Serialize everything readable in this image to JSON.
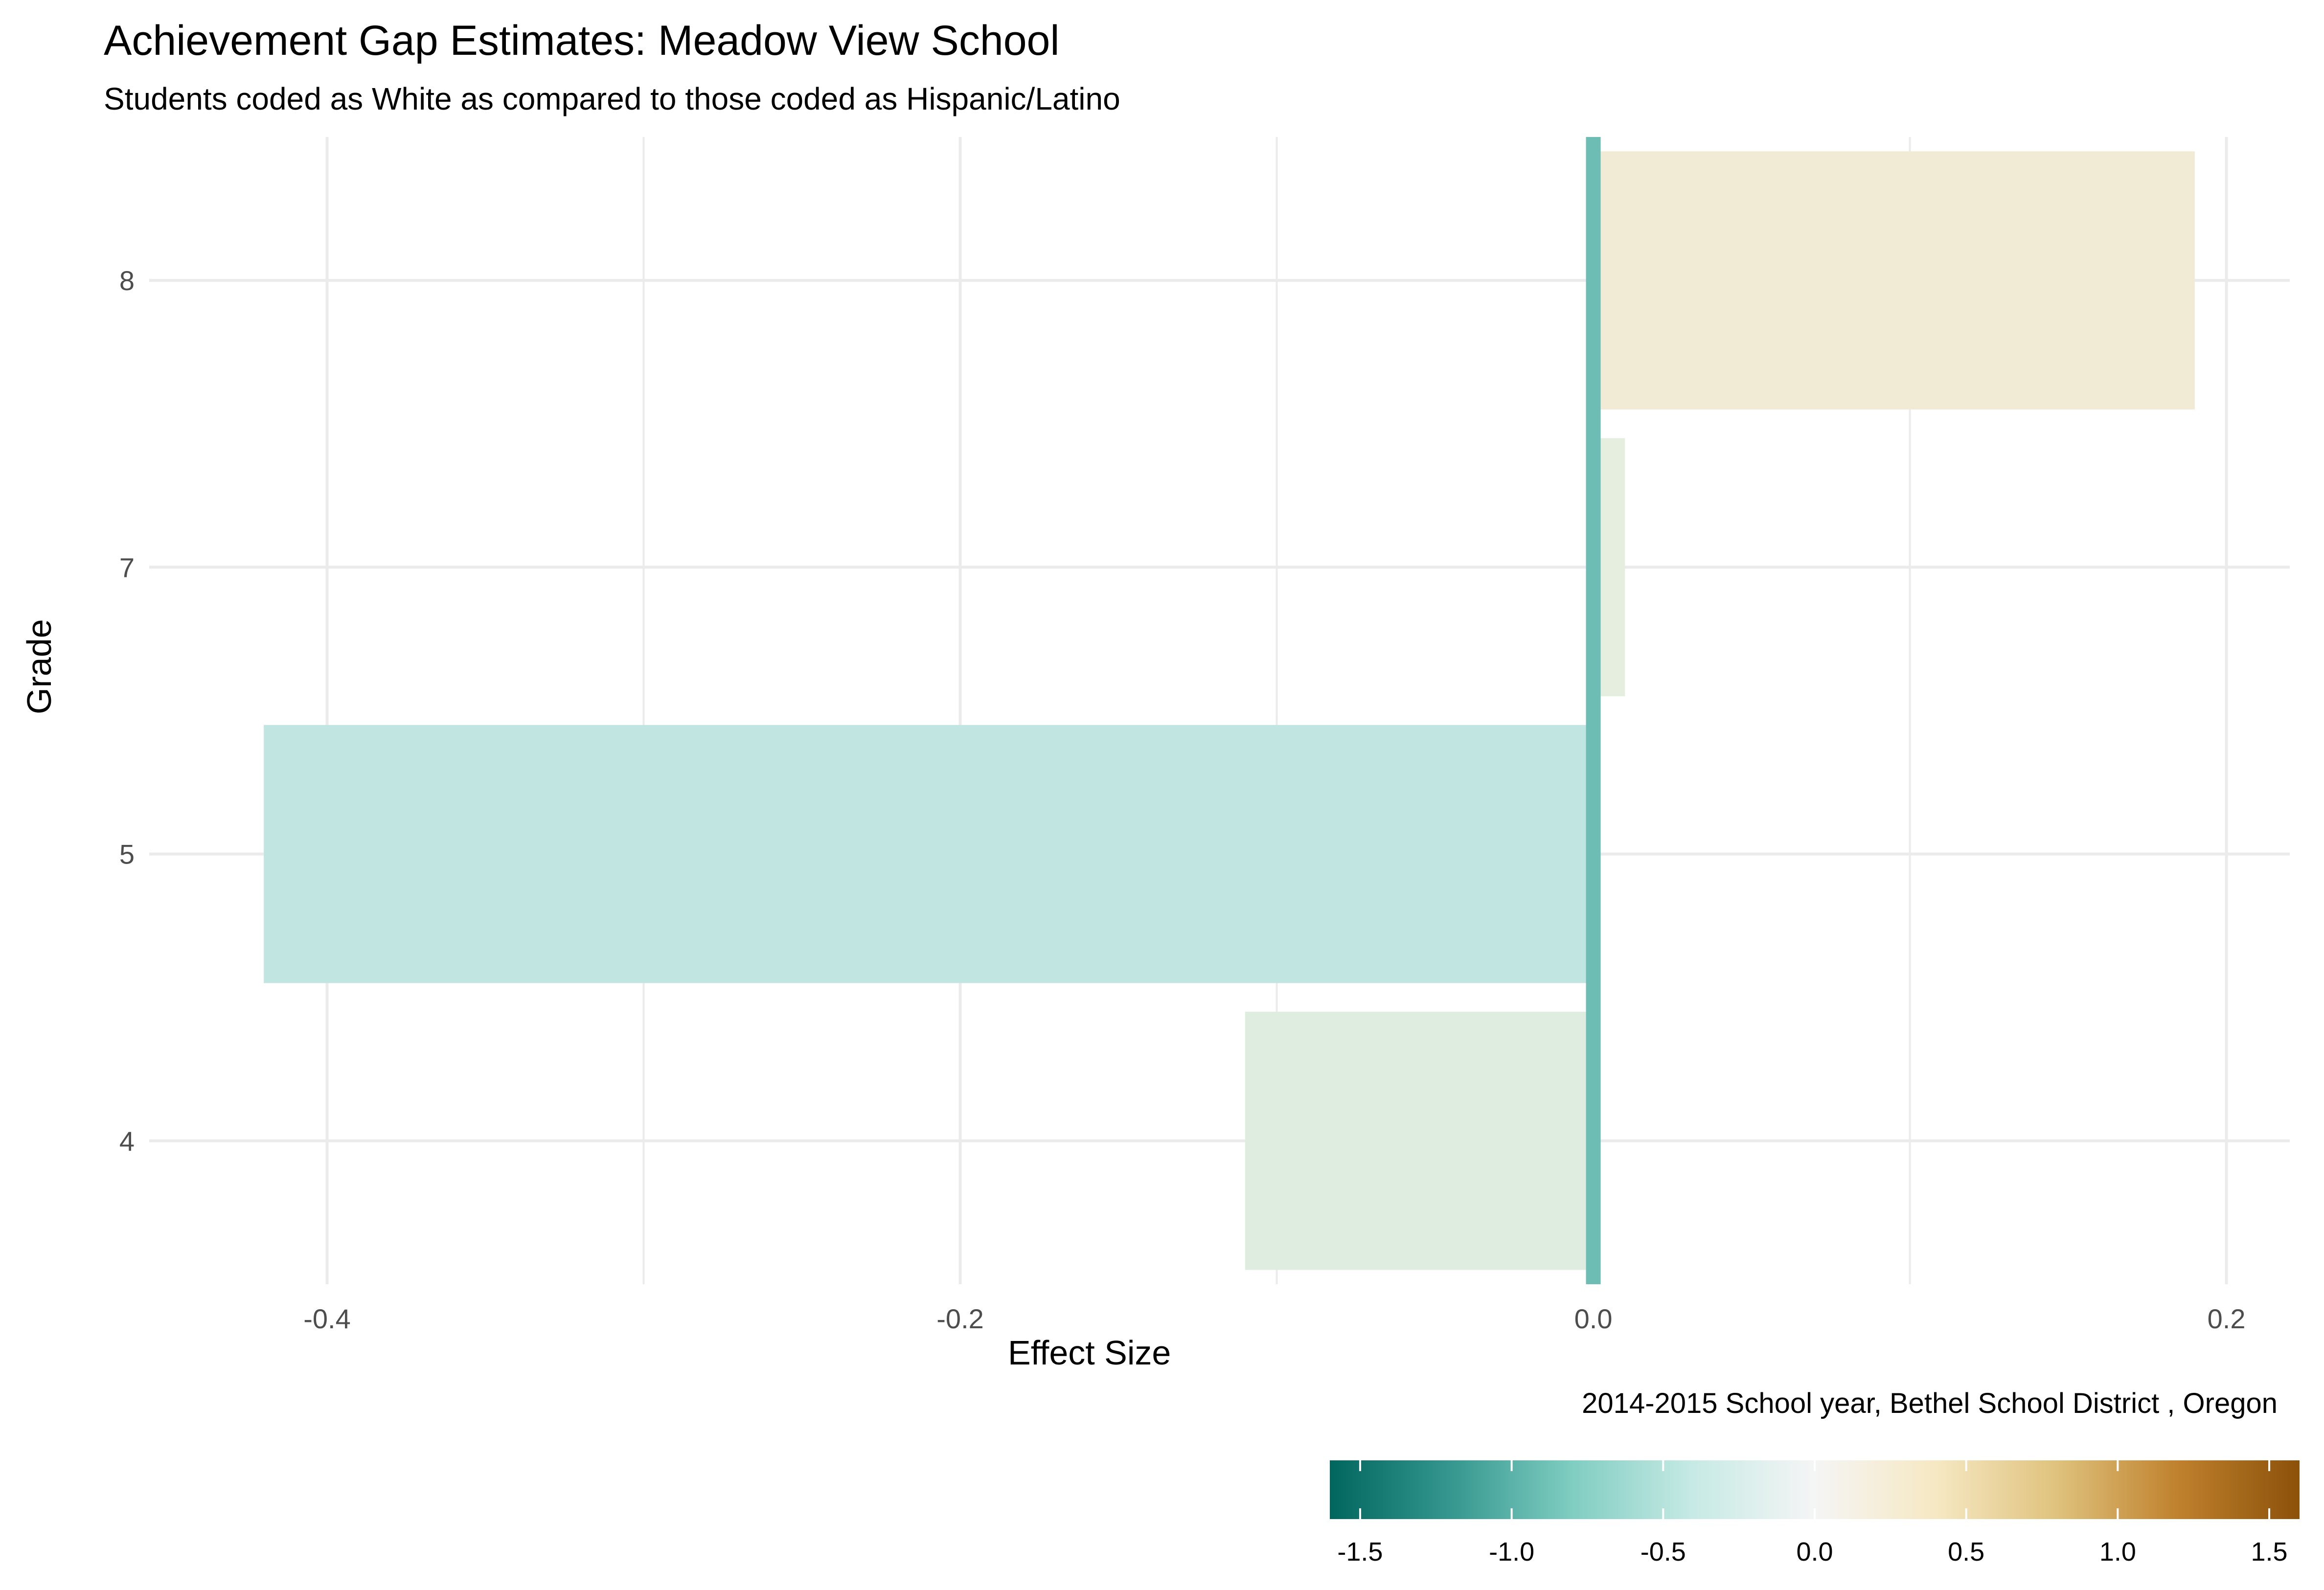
{
  "chart_data": {
    "type": "bar",
    "orientation": "horizontal",
    "title": "Achievement Gap Estimates: Meadow View School",
    "subtitle": "Students coded as White as compared to those coded as Hispanic/Latino",
    "caption": "2014-2015 School year,  Bethel School District , Oregon",
    "xlabel": "Effect Size",
    "ylabel": "Grade",
    "categories": [
      "4",
      "5",
      "7",
      "8"
    ],
    "values": [
      -0.11,
      -0.42,
      0.01,
      0.19
    ],
    "xlim": [
      -0.45,
      0.22
    ],
    "x_ticks": [
      -0.4,
      -0.2,
      0.0,
      0.2
    ],
    "x_tick_labels": [
      "-0.4",
      "-0.2",
      "0.0",
      "0.2"
    ],
    "reference_line": 0.0,
    "grid": true,
    "colors": {
      "bars": [
        "#dfece0",
        "#c1e5e1",
        "#e6eedf",
        "#f1ead4"
      ],
      "reference_line": "#6dbdb5",
      "grid": "#ebebeb"
    },
    "legend": {
      "type": "colorbar",
      "placement": "bottom-right",
      "range": [
        -1.6,
        1.6
      ],
      "ticks": [
        -1.5,
        -1.0,
        -0.5,
        0.0,
        0.5,
        1.0,
        1.5
      ],
      "tick_labels": [
        "-1.5",
        "-1.0",
        "-0.5",
        "0.0",
        "0.5",
        "1.0",
        "1.5"
      ],
      "palette": [
        "#01665e",
        "#35978f",
        "#80cdc1",
        "#c7eae5",
        "#f5f5f5",
        "#f6e8c3",
        "#dfc27d",
        "#bf812d",
        "#8c510a"
      ]
    }
  }
}
